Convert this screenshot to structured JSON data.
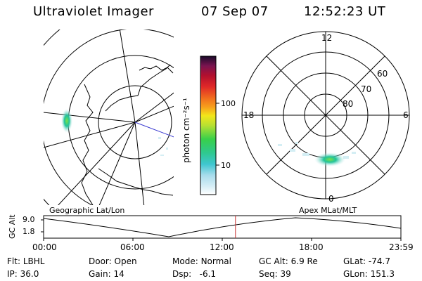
{
  "header": {
    "instrument": "Ultraviolet Imager",
    "date": "07 Sep 07",
    "time": "12:52:23 UT"
  },
  "colorbar": {
    "unit_label": "photon cm⁻²s⁻¹",
    "ticks": [
      "100",
      "10"
    ]
  },
  "polar_plot": {
    "mlt_labels": {
      "top": "12",
      "left": "18",
      "right": "6",
      "bottom": "0"
    },
    "lat_labels": [
      "60",
      "70",
      "80"
    ]
  },
  "panel_labels": {
    "left": "Geographic Lat/Lon",
    "right": "Apex MLat/MLT"
  },
  "altitude_plot": {
    "axis_label": "GC Alt",
    "y_ticks": [
      "9.0",
      "1.8"
    ],
    "x_ticks": [
      "00:00",
      "06:00",
      "12:00",
      "18:00",
      "23:59"
    ],
    "current_time_fraction": 0.537,
    "marker_color": "#c83232"
  },
  "status": {
    "row1": [
      {
        "key": "Flt:",
        "value": "LBHL"
      },
      {
        "key": "Door:",
        "value": "Open"
      },
      {
        "key": "Mode:",
        "value": "Normal"
      },
      {
        "key": "GC Alt:",
        "value": "6.9 Re"
      },
      {
        "key": "GLat:",
        "value": "-74.7"
      }
    ],
    "row2": [
      {
        "key": "IP:",
        "value": "36.0"
      },
      {
        "key": "Gain:",
        "value": "14"
      },
      {
        "key": "Dsp:",
        "value": "-6.1"
      },
      {
        "key": "Seq:",
        "value": "39"
      },
      {
        "key": "GLon:",
        "value": "151.3"
      }
    ]
  },
  "colors": {
    "emission_peak": "#22c8a0",
    "emission_core": "#6ee04a",
    "trace_line": "#3a3ad0"
  }
}
